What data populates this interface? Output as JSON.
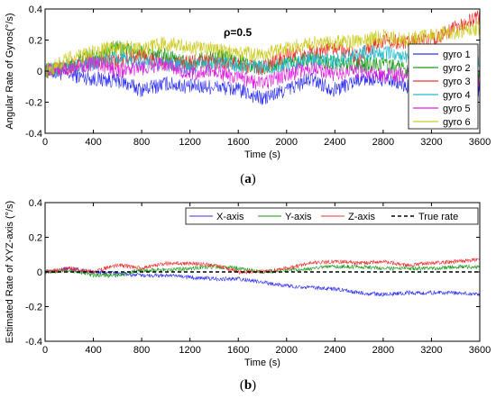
{
  "chart_data": [
    {
      "type": "line",
      "panel": "(a)",
      "caption_open": "(",
      "caption_letter": "a",
      "caption_close": ")",
      "xlabel": "Time (s)",
      "ylabel": "Angular Rate of Gyros(°/s)",
      "xlim": [
        0,
        3600
      ],
      "ylim": [
        -0.4,
        0.4
      ],
      "xticks": [
        "0",
        "400",
        "800",
        "1200",
        "1600",
        "2000",
        "2400",
        "2800",
        "3200",
        "3600"
      ],
      "yticks": [
        "-0.4",
        "-0.2",
        "0",
        "0.2",
        "0.4"
      ],
      "annotation": "ρ=0.5",
      "legend_position": "right",
      "x": [
        0,
        200,
        400,
        600,
        800,
        1000,
        1200,
        1400,
        1600,
        1800,
        2000,
        2200,
        2400,
        2600,
        2800,
        3000,
        3200,
        3400,
        3600
      ],
      "series": [
        {
          "name": "gyro 1",
          "color": "#3333ee",
          "noise": 0.05,
          "values": [
            0.0,
            -0.02,
            -0.05,
            -0.06,
            -0.12,
            -0.08,
            -0.1,
            -0.1,
            -0.12,
            -0.18,
            -0.12,
            -0.05,
            -0.12,
            -0.05,
            -0.05,
            -0.1,
            -0.1,
            -0.1,
            -0.12
          ]
        },
        {
          "name": "gyro 2",
          "color": "#1a9a1a",
          "noise": 0.05,
          "values": [
            0.0,
            0.04,
            0.1,
            0.15,
            0.12,
            0.1,
            0.05,
            0.1,
            0.06,
            0.02,
            0.05,
            0.08,
            0.05,
            0.04,
            0.05,
            0.0,
            -0.05,
            -0.05,
            -0.05
          ]
        },
        {
          "name": "gyro 3",
          "color": "#ee3333",
          "noise": 0.05,
          "values": [
            0.0,
            0.03,
            0.07,
            0.06,
            0.1,
            0.04,
            0.06,
            0.06,
            0.04,
            0.02,
            0.1,
            0.12,
            0.15,
            0.1,
            0.2,
            0.18,
            0.2,
            0.28,
            0.35
          ]
        },
        {
          "name": "gyro 4",
          "color": "#22bbcc",
          "noise": 0.05,
          "values": [
            0.0,
            0.02,
            0.05,
            0.08,
            0.05,
            0.05,
            0.02,
            0.05,
            0.04,
            0.02,
            0.04,
            0.08,
            0.06,
            0.12,
            0.12,
            0.1,
            0.1,
            0.08,
            0.08
          ]
        },
        {
          "name": "gyro 5",
          "color": "#dd22dd",
          "noise": 0.05,
          "values": [
            0.0,
            0.02,
            0.05,
            0.0,
            0.02,
            0.05,
            -0.02,
            0.0,
            -0.05,
            -0.08,
            -0.02,
            0.02,
            -0.02,
            0.0,
            -0.03,
            -0.02,
            -0.05,
            -0.05,
            -0.05
          ]
        },
        {
          "name": "gyro 6",
          "color": "#cccc22",
          "noise": 0.05,
          "values": [
            0.0,
            0.08,
            0.12,
            0.16,
            0.14,
            0.18,
            0.15,
            0.14,
            0.12,
            0.1,
            0.15,
            0.18,
            0.18,
            0.2,
            0.22,
            0.2,
            0.24,
            0.25,
            0.28
          ]
        }
      ]
    },
    {
      "type": "line",
      "panel": "(b)",
      "caption_open": "(",
      "caption_letter": "b",
      "caption_close": ")",
      "xlabel": "Time (s)",
      "ylabel": "Estimated Rate of XYZ-axis (°/s)",
      "xlim": [
        0,
        3600
      ],
      "ylim": [
        -0.4,
        0.4
      ],
      "xticks": [
        "0",
        "400",
        "800",
        "1200",
        "1600",
        "2000",
        "2400",
        "2800",
        "3200",
        "3600"
      ],
      "yticks": [
        "-0.4",
        "-0.2",
        "0",
        "0.2",
        "0.4"
      ],
      "legend_position": "top",
      "x": [
        0,
        200,
        400,
        600,
        800,
        1000,
        1200,
        1400,
        1600,
        1800,
        2000,
        2200,
        2400,
        2600,
        2800,
        3000,
        3200,
        3400,
        3600
      ],
      "series": [
        {
          "name": "X-axis",
          "color": "#3333ee",
          "noise": 0.012,
          "values": [
            0.0,
            0.02,
            0.0,
            -0.01,
            -0.02,
            -0.02,
            -0.03,
            -0.04,
            -0.04,
            -0.06,
            -0.08,
            -0.09,
            -0.1,
            -0.12,
            -0.13,
            -0.12,
            -0.12,
            -0.12,
            -0.13
          ]
        },
        {
          "name": "Y-axis",
          "color": "#1a9a1a",
          "noise": 0.012,
          "values": [
            0.0,
            0.01,
            -0.02,
            -0.02,
            0.01,
            0.01,
            0.02,
            0.03,
            0.02,
            0.0,
            0.01,
            0.02,
            0.03,
            0.03,
            0.02,
            0.02,
            0.02,
            0.03,
            0.03
          ]
        },
        {
          "name": "Z-axis",
          "color": "#ee3333",
          "noise": 0.012,
          "values": [
            0.0,
            0.02,
            0.0,
            0.04,
            0.02,
            0.05,
            0.05,
            0.04,
            0.0,
            0.0,
            0.02,
            0.05,
            0.06,
            0.05,
            0.06,
            0.04,
            0.05,
            0.06,
            0.07
          ]
        },
        {
          "name": "True rate",
          "color": "#000000",
          "dashed": true,
          "noise": 0,
          "values": [
            0,
            0,
            0,
            0,
            0,
            0,
            0,
            0,
            0,
            0,
            0,
            0,
            0,
            0,
            0,
            0,
            0,
            0,
            0
          ]
        }
      ]
    }
  ]
}
